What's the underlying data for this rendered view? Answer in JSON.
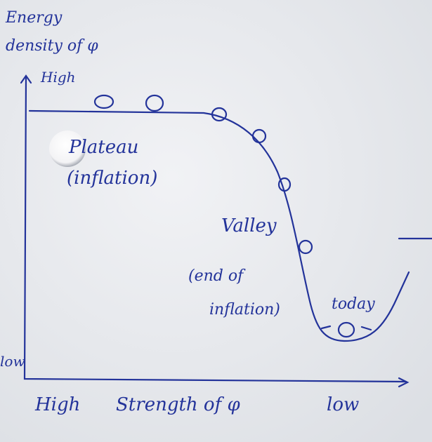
{
  "axes": {
    "y_label": [
      "Energy",
      "density of φ"
    ],
    "y_high": "High",
    "y_low": "low",
    "x_high": "High",
    "x_label": "Strength of φ",
    "x_low": "low"
  },
  "regions": [
    {
      "lines": [
        "Plateau",
        "(inflation)"
      ]
    },
    {
      "lines": [
        "Valley",
        "(end of",
        "inflation)"
      ]
    },
    {
      "lines": [
        "today"
      ]
    }
  ]
}
